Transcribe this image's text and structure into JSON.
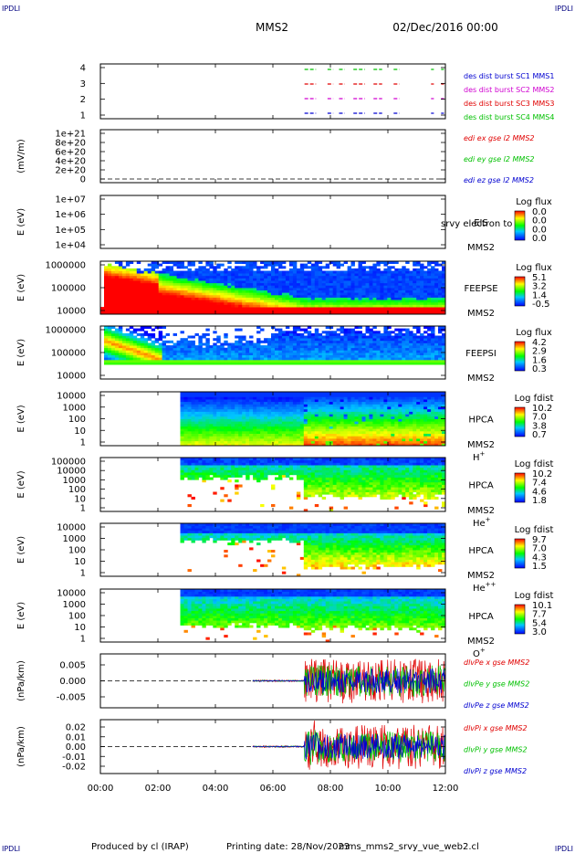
{
  "corner_tag": "IPDLI",
  "header": {
    "spacecraft": "MMS2",
    "date_time": "02/Dec/2016 00:00"
  },
  "footer": {
    "produced_by": "Produced by cl (IRAP)",
    "printing_date": "Printing date: 28/Nov/2023",
    "script_name": "mms_mms2_srvy_vue_web2.cl"
  },
  "time_axis": {
    "ticks": [
      "00:00",
      "02:00",
      "04:00",
      "06:00",
      "08:00",
      "10:00",
      "12:00"
    ],
    "range_hours": [
      0,
      12
    ]
  },
  "colors": {
    "red": "#e00000",
    "green": "#00c000",
    "blue": "#0000d0",
    "magenta": "#d000d0",
    "navy": "#000080"
  },
  "chart_data": [
    {
      "id": "burst",
      "type": "scatter",
      "y_ticks": [
        "4",
        "3",
        "2",
        "1"
      ],
      "legend": [
        {
          "label": "des dist burst SC1 MMS1",
          "color": "#0000d0"
        },
        {
          "label": "des dist burst SC2 MMS2",
          "color": "#d000d0"
        },
        {
          "label": "des dist burst SC3 MMS3",
          "color": "#e00000"
        },
        {
          "label": "des dist burst SC4 MMS4",
          "color": "#00c000"
        }
      ],
      "bursts_hours": [
        [
          7.1,
          7.5
        ],
        [
          7.9,
          8.1
        ],
        [
          8.3,
          8.5
        ],
        [
          8.8,
          9.2
        ],
        [
          9.5,
          9.8
        ],
        [
          10.2,
          10.4
        ],
        [
          11.5,
          11.6
        ],
        [
          11.85,
          11.95
        ]
      ]
    },
    {
      "id": "edi",
      "type": "line",
      "ylabel": "(mV/m)",
      "y_ticks": [
        "1e+21",
        "8e+20",
        "6e+20",
        "4e+20",
        "2e+20",
        "0"
      ],
      "legend": [
        {
          "label": "edi ex gse l2 MMS2",
          "color": "#e00000"
        },
        {
          "label": "edi ey gse l2 MMS2",
          "color": "#00c000"
        },
        {
          "label": "edi ez gse l2 MMS2",
          "color": "#0000d0"
        }
      ]
    },
    {
      "id": "eis",
      "type": "heatmap",
      "ylabel": "E (eV)",
      "y_ticks": [
        "1e+07",
        "1e+06",
        "1e+05",
        "1e+04"
      ],
      "instrument": "EIS",
      "spacecraft": "MMS2",
      "overlay_text": "srvy electron to",
      "colorbar_title": "Log flux",
      "colorbar_ticks": [
        "0.0",
        "0.0",
        "0.0",
        "0.0"
      ]
    },
    {
      "id": "feepse",
      "type": "heatmap",
      "ylabel": "E (eV)",
      "y_ticks": [
        "1000000",
        "100000",
        "10000"
      ],
      "instrument": "FEEPSE",
      "spacecraft": "MMS2",
      "colorbar_title": "Log flux",
      "colorbar_ticks": [
        "5.1",
        "3.2",
        "1.4",
        "-0.5"
      ]
    },
    {
      "id": "feepsi",
      "type": "heatmap",
      "ylabel": "E (eV)",
      "y_ticks": [
        "1000000",
        "100000",
        "10000"
      ],
      "instrument": "FEEPSI",
      "spacecraft": "MMS2",
      "colorbar_title": "Log flux",
      "colorbar_ticks": [
        "4.2",
        "2.9",
        "1.6",
        "0.3"
      ]
    },
    {
      "id": "hpca_h",
      "type": "heatmap",
      "ylabel": "E (eV)",
      "y_ticks": [
        "10000",
        "1000",
        "100",
        "10",
        "1"
      ],
      "instrument": "HPCA",
      "spacecraft": "MMS2",
      "species": "H",
      "species_sup": "+",
      "colorbar_title": "Log fdist",
      "colorbar_ticks": [
        "10.2",
        "7.0",
        "3.8",
        "0.7"
      ]
    },
    {
      "id": "hpca_he",
      "type": "heatmap",
      "ylabel": "E (eV)",
      "y_ticks": [
        "100000",
        "10000",
        "1000",
        "100",
        "10",
        "1"
      ],
      "instrument": "HPCA",
      "spacecraft": "MMS2",
      "species": "He",
      "species_sup": "+",
      "colorbar_title": "Log fdist",
      "colorbar_ticks": [
        "10.2",
        "7.4",
        "4.6",
        "1.8"
      ]
    },
    {
      "id": "hpca_hepp",
      "type": "heatmap",
      "ylabel": "E (eV)",
      "y_ticks": [
        "10000",
        "1000",
        "100",
        "10",
        "1"
      ],
      "instrument": "HPCA",
      "spacecraft": "MMS2",
      "species": "He",
      "species_sup": "++",
      "colorbar_title": "Log fdist",
      "colorbar_ticks": [
        "9.7",
        "7.0",
        "4.3",
        "1.5"
      ]
    },
    {
      "id": "hpca_o",
      "type": "heatmap",
      "ylabel": "E (eV)",
      "y_ticks": [
        "10000",
        "1000",
        "100",
        "10",
        "1"
      ],
      "instrument": "HPCA",
      "spacecraft": "MMS2",
      "species": "O",
      "species_sup": "+",
      "colorbar_title": "Log fdist",
      "colorbar_ticks": [
        "10.1",
        "7.7",
        "5.4",
        "3.0"
      ]
    },
    {
      "id": "divpe",
      "type": "line",
      "ylabel": "(nPa/km)",
      "y_ticks": [
        "0.005",
        "0.000",
        "-0.005"
      ],
      "ylim": [
        -0.009,
        0.009
      ],
      "legend": [
        {
          "label": "dlvPe x gse MMS2",
          "color": "#e00000"
        },
        {
          "label": "dlvPe y gse MMS2",
          "color": "#00c000"
        },
        {
          "label": "dlvPe z gse MMS2",
          "color": "#0000d0"
        }
      ],
      "data_start_hour": 5.3,
      "active_start_hour": 7.1
    },
    {
      "id": "divpi",
      "type": "line",
      "ylabel": "(nPa/km)",
      "y_ticks": [
        "0.02",
        "0.01",
        "0.00",
        "-0.01",
        "-0.02"
      ],
      "ylim": [
        -0.025,
        0.025
      ],
      "legend": [
        {
          "label": "dlvPi x gse MMS2",
          "color": "#e00000"
        },
        {
          "label": "dlvPi y gse MMS2",
          "color": "#00c000"
        },
        {
          "label": "dlvPi z gse MMS2",
          "color": "#0000d0"
        }
      ],
      "data_start_hour": 5.3,
      "active_start_hour": 7.1
    }
  ]
}
